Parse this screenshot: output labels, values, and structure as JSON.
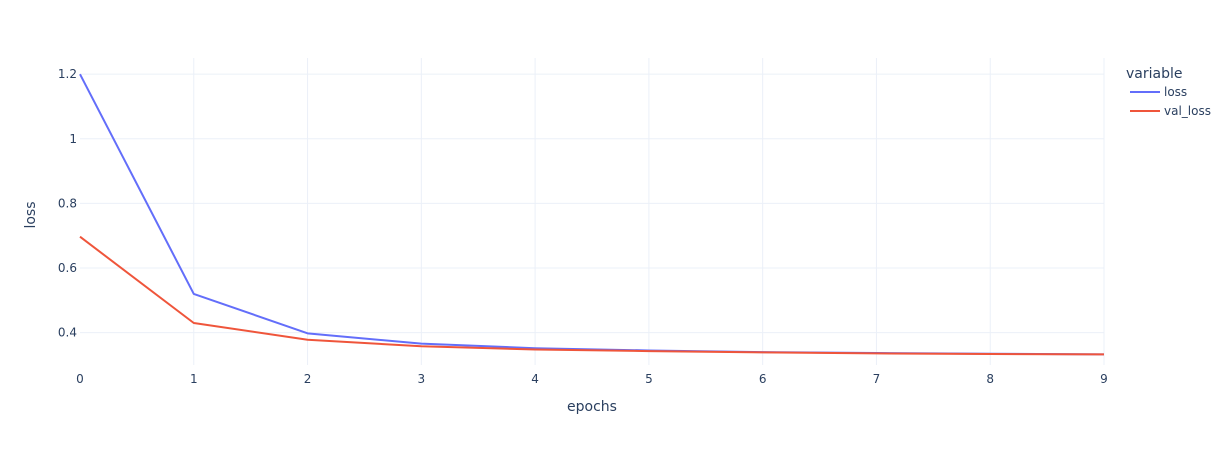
{
  "chart_data": {
    "type": "line",
    "xlabel": "epochs",
    "ylabel": "loss",
    "x": [
      0,
      1,
      2,
      3,
      4,
      5,
      6,
      7,
      8,
      9
    ],
    "xlim": [
      0,
      9
    ],
    "ylim": [
      0.3,
      1.25
    ],
    "x_ticks": [
      "0",
      "1",
      "2",
      "3",
      "4",
      "5",
      "6",
      "7",
      "8",
      "9"
    ],
    "y_ticks": [
      {
        "value": 0.4,
        "label": "0.4"
      },
      {
        "value": 0.6,
        "label": "0.6"
      },
      {
        "value": 0.8,
        "label": "0.8"
      },
      {
        "value": 1.0,
        "label": "1"
      },
      {
        "value": 1.2,
        "label": "1.2"
      }
    ],
    "grid": true,
    "legend": {
      "title": "variable",
      "position": "top-right"
    },
    "series": [
      {
        "name": "loss",
        "color": "#636efa",
        "values": [
          1.2,
          0.52,
          0.398,
          0.366,
          0.352,
          0.345,
          0.34,
          0.337,
          0.335,
          0.333
        ]
      },
      {
        "name": "val_loss",
        "color": "#ef553b",
        "values": [
          0.697,
          0.43,
          0.378,
          0.358,
          0.348,
          0.343,
          0.339,
          0.336,
          0.334,
          0.333
        ]
      }
    ]
  }
}
